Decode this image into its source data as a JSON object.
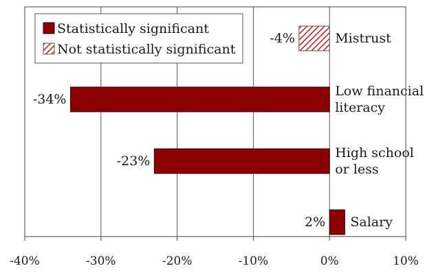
{
  "chart_data": {
    "type": "bar",
    "orientation": "horizontal",
    "title": "",
    "xlabel": "",
    "ylabel": "",
    "xlim": [
      -40,
      10
    ],
    "x_ticks": [
      -40,
      -30,
      -20,
      -10,
      0,
      10
    ],
    "x_tick_labels": [
      "-40%",
      "-30%",
      "-20%",
      "-10%",
      "0%",
      "10%"
    ],
    "grid": "vertical",
    "legend_position": "top-left",
    "legend": [
      {
        "label": "Statistically significant",
        "style": "solid"
      },
      {
        "label": "Not statistically significant",
        "style": "hatched"
      }
    ],
    "categories": [
      {
        "label_lines": [
          "Mistrust"
        ],
        "value": -4,
        "value_label": "-4%",
        "significant": false
      },
      {
        "label_lines": [
          "Low financial",
          "literacy"
        ],
        "value": -34,
        "value_label": "-34%",
        "significant": true
      },
      {
        "label_lines": [
          "High school",
          "or less"
        ],
        "value": -23,
        "value_label": "-23%",
        "significant": true
      },
      {
        "label_lines": [
          "Salary"
        ],
        "value": 2,
        "value_label": "2%",
        "significant": true
      }
    ],
    "colors": {
      "significant": "#8b0000",
      "hatch": "#b22222"
    }
  }
}
